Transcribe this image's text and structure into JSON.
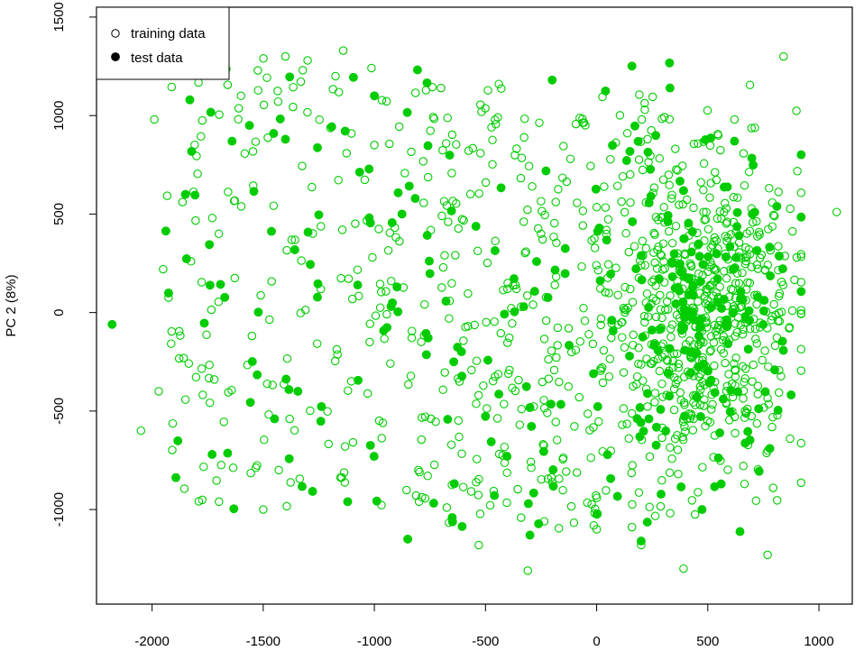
{
  "chart_data": {
    "type": "scatter",
    "title": "",
    "xlabel": "",
    "ylabel": "PC 2 (8%)",
    "xlim": [
      -2250,
      1150
    ],
    "ylim": [
      -1480,
      1550
    ],
    "x_ticks": [
      -2000,
      -1500,
      -1000,
      -500,
      0,
      500,
      1000
    ],
    "y_ticks": [
      -1000,
      -500,
      0,
      500,
      1000,
      1500
    ],
    "grid": false,
    "legend_position": "top-left",
    "point_color": "#00cc00",
    "series": [
      {
        "name": "training data",
        "marker": "open-circle",
        "generated_count": 1040,
        "x": [],
        "y": [],
        "representative_points": [
          [
            -2050,
            -600
          ],
          [
            -1970,
            -400
          ],
          [
            -1950,
            220
          ],
          [
            -1990,
            980
          ],
          [
            -1600,
            1100
          ],
          [
            -1700,
            400
          ],
          [
            -1720,
            -340
          ],
          [
            -1500,
            -1000
          ],
          [
            -1400,
            1300
          ],
          [
            -1140,
            1330
          ],
          [
            -1300,
            1280
          ],
          [
            -1000,
            850
          ],
          [
            -700,
            1140
          ],
          [
            -440,
            1160
          ],
          [
            -250,
            400
          ],
          [
            -310,
            -1310
          ],
          [
            -530,
            -1180
          ],
          [
            0,
            -1100
          ],
          [
            200,
            -1180
          ],
          [
            300,
            350
          ],
          [
            500,
            120
          ],
          [
            700,
            -350
          ],
          [
            900,
            280
          ],
          [
            1080,
            510
          ],
          [
            620,
            980
          ],
          [
            800,
            490
          ],
          [
            870,
            -640
          ]
        ]
      },
      {
        "name": "test data",
        "marker": "filled-circle",
        "generated_count": 300,
        "x": [],
        "y": [],
        "representative_points": [
          [
            -2180,
            -60
          ],
          [
            -1830,
            1080
          ],
          [
            -1850,
            600
          ],
          [
            -1730,
            -720
          ],
          [
            -1640,
            870
          ],
          [
            -1400,
            880
          ],
          [
            -1120,
            -960
          ],
          [
            -1000,
            1100
          ],
          [
            -850,
            -1150
          ],
          [
            -650,
            -1040
          ],
          [
            -300,
            -1130
          ],
          [
            -200,
            1180
          ],
          [
            200,
            -1160
          ],
          [
            330,
            1140
          ],
          [
            620,
            870
          ],
          [
            560,
            -870
          ],
          [
            700,
            500
          ],
          [
            400,
            0
          ]
        ]
      }
    ]
  }
}
